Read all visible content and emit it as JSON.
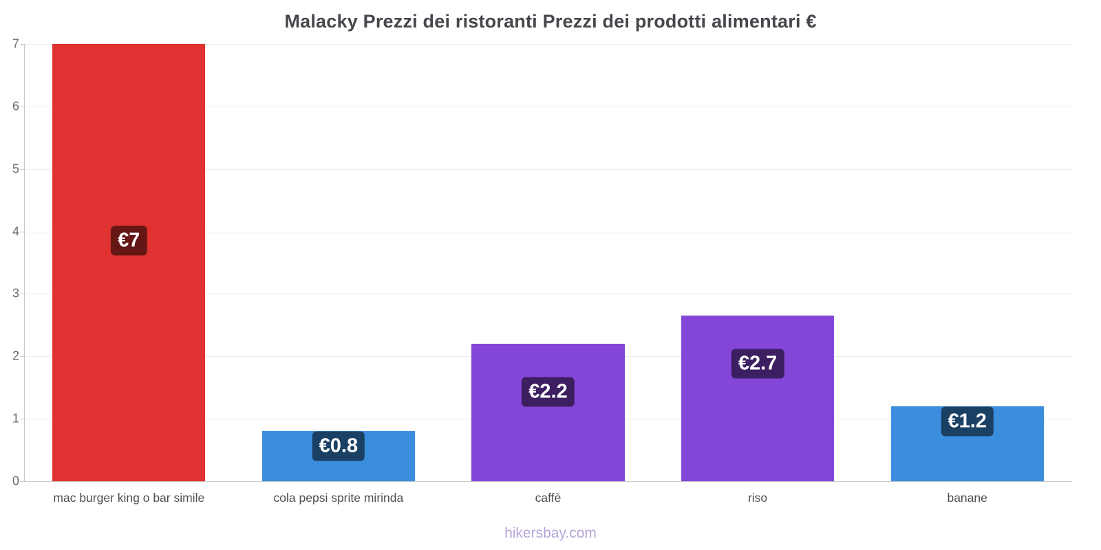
{
  "title": "Malacky Prezzi dei ristoranti Prezzi dei prodotti alimentari €",
  "footer": "hikersbay.com",
  "chart_data": {
    "type": "bar",
    "title": "Malacky Prezzi dei ristoranti Prezzi dei prodotti alimentari €",
    "categories": [
      "mac burger king o bar simile",
      "cola pepsi sprite mirinda",
      "caffè",
      "riso",
      "banane"
    ],
    "values": [
      7,
      0.8,
      2.2,
      2.65,
      1.2
    ],
    "value_labels": [
      "€7",
      "€0.8",
      "€2.2",
      "€2.7",
      "€1.2"
    ],
    "bar_colors": [
      "#e03331",
      "#3b8ede",
      "#8446d8",
      "#8446d8",
      "#3b8ede"
    ],
    "xlabel": "",
    "ylabel": "",
    "ylim": [
      0,
      7
    ],
    "yticks": [
      0,
      1,
      2,
      3,
      4,
      5,
      6,
      7
    ],
    "grid": "horizontal",
    "legend": "none",
    "currency": "€"
  },
  "colors": {
    "title_text": "#46464c",
    "axis_text": "#6b6b6b",
    "category_text": "#4f4f4f",
    "grid_line": "#ededed",
    "axis_line": "#c9c9c9",
    "value_label_bg": "rgba(0,0,0,0.55)",
    "value_label_text": "#ffffff",
    "footer_text": "#b4a4d8",
    "background": "#ffffff"
  }
}
